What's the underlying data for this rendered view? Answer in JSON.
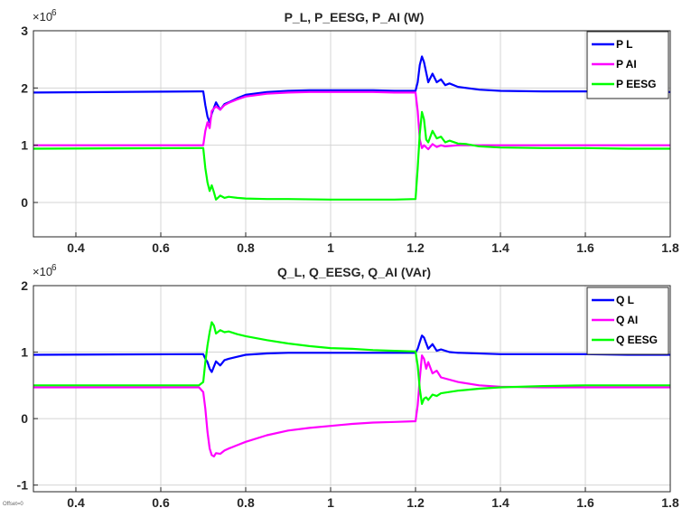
{
  "offset_label": "Offset=0",
  "chart_data": [
    {
      "type": "line",
      "title": "P_L, P_EESG, P_AI (W)",
      "xlabel": "",
      "ylabel": "",
      "exponent_base": "×10",
      "exponent_power": "6",
      "xlim": [
        0.3,
        1.8
      ],
      "ylim": [
        -0.6,
        3.0
      ],
      "xticks": [
        0.4,
        0.6,
        0.8,
        1.0,
        1.2,
        1.4,
        1.6,
        1.8
      ],
      "xtick_labels": [
        "0.4",
        "0.6",
        "0.8",
        "1",
        "1.2",
        "1.4",
        "1.6",
        "1.8"
      ],
      "yticks": [
        0,
        1,
        2,
        3
      ],
      "ytick_labels": [
        "0",
        "1",
        "2",
        "3"
      ],
      "grid": true,
      "legend": "top-right",
      "series": [
        {
          "name": "P L",
          "color": "#0000ff",
          "x": [
            0.3,
            0.69,
            0.7,
            0.705,
            0.71,
            0.715,
            0.72,
            0.73,
            0.74,
            0.75,
            0.76,
            0.78,
            0.8,
            0.85,
            0.9,
            0.95,
            1.0,
            1.05,
            1.1,
            1.15,
            1.2,
            1.205,
            1.21,
            1.215,
            1.22,
            1.23,
            1.24,
            1.25,
            1.26,
            1.27,
            1.28,
            1.3,
            1.35,
            1.4,
            1.5,
            1.6,
            1.7,
            1.8
          ],
          "y": [
            1.92,
            1.94,
            1.94,
            1.7,
            1.5,
            1.4,
            1.55,
            1.75,
            1.62,
            1.72,
            1.75,
            1.82,
            1.88,
            1.93,
            1.95,
            1.96,
            1.96,
            1.96,
            1.96,
            1.95,
            1.95,
            2.1,
            2.4,
            2.55,
            2.45,
            2.1,
            2.25,
            2.1,
            2.15,
            2.05,
            2.08,
            2.02,
            1.97,
            1.95,
            1.94,
            1.94,
            1.93,
            1.93
          ]
        },
        {
          "name": "P AI",
          "color": "#ff00ff",
          "x": [
            0.3,
            0.69,
            0.7,
            0.705,
            0.71,
            0.715,
            0.72,
            0.73,
            0.74,
            0.75,
            0.76,
            0.78,
            0.8,
            0.85,
            0.9,
            0.95,
            1.0,
            1.05,
            1.1,
            1.15,
            1.2,
            1.205,
            1.21,
            1.215,
            1.22,
            1.23,
            1.24,
            1.25,
            1.26,
            1.27,
            1.3,
            1.4,
            1.5,
            1.6,
            1.7,
            1.8
          ],
          "y": [
            1.0,
            1.0,
            1.0,
            1.25,
            1.4,
            1.3,
            1.6,
            1.68,
            1.62,
            1.7,
            1.74,
            1.8,
            1.85,
            1.9,
            1.92,
            1.93,
            1.93,
            1.93,
            1.93,
            1.92,
            1.92,
            1.6,
            1.1,
            0.95,
            1.0,
            0.93,
            1.02,
            0.97,
            1.0,
            0.98,
            1.0,
            1.0,
            1.0,
            1.0,
            1.0,
            1.0
          ]
        },
        {
          "name": "P EESG",
          "color": "#00ff00",
          "x": [
            0.3,
            0.69,
            0.7,
            0.705,
            0.71,
            0.715,
            0.72,
            0.725,
            0.73,
            0.74,
            0.75,
            0.76,
            0.78,
            0.8,
            0.85,
            0.9,
            1.0,
            1.1,
            1.15,
            1.2,
            1.205,
            1.21,
            1.215,
            1.22,
            1.225,
            1.23,
            1.24,
            1.25,
            1.26,
            1.27,
            1.28,
            1.3,
            1.32,
            1.35,
            1.4,
            1.5,
            1.6,
            1.7,
            1.8
          ],
          "y": [
            0.94,
            0.95,
            0.95,
            0.6,
            0.35,
            0.2,
            0.3,
            0.18,
            0.05,
            0.12,
            0.08,
            0.1,
            0.08,
            0.07,
            0.06,
            0.06,
            0.05,
            0.05,
            0.05,
            0.06,
            0.6,
            1.2,
            1.58,
            1.45,
            1.1,
            1.05,
            1.25,
            1.12,
            1.15,
            1.05,
            1.08,
            1.03,
            1.02,
            0.98,
            0.96,
            0.95,
            0.95,
            0.94,
            0.94
          ]
        }
      ]
    },
    {
      "type": "line",
      "title": "Q_L, Q_EESG, Q_AI (VAr)",
      "xlabel": "",
      "ylabel": "",
      "exponent_base": "×10",
      "exponent_power": "6",
      "xlim": [
        0.3,
        1.8
      ],
      "ylim": [
        -1.1,
        2.0
      ],
      "xticks": [
        0.4,
        0.6,
        0.8,
        1.0,
        1.2,
        1.4,
        1.6,
        1.8
      ],
      "xtick_labels": [
        "0.4",
        "0.6",
        "0.8",
        "1",
        "1.2",
        "1.4",
        "1.6",
        "1.8"
      ],
      "yticks": [
        -1,
        0,
        1,
        2
      ],
      "ytick_labels": [
        "-1",
        "0",
        "1",
        "2"
      ],
      "grid": true,
      "legend": "top-right",
      "series": [
        {
          "name": "Q L",
          "color": "#0000ff",
          "x": [
            0.3,
            0.69,
            0.7,
            0.705,
            0.71,
            0.715,
            0.72,
            0.73,
            0.74,
            0.75,
            0.76,
            0.78,
            0.8,
            0.85,
            0.9,
            1.0,
            1.1,
            1.2,
            1.205,
            1.21,
            1.215,
            1.22,
            1.23,
            1.24,
            1.25,
            1.26,
            1.28,
            1.3,
            1.4,
            1.5,
            1.6,
            1.7,
            1.8
          ],
          "y": [
            0.96,
            0.97,
            0.97,
            0.9,
            0.85,
            0.75,
            0.7,
            0.86,
            0.8,
            0.88,
            0.9,
            0.93,
            0.96,
            0.98,
            0.99,
            0.99,
            0.99,
            0.99,
            1.05,
            1.15,
            1.25,
            1.22,
            1.05,
            1.12,
            1.02,
            1.04,
            1.0,
            0.99,
            0.97,
            0.97,
            0.97,
            0.96,
            0.96
          ]
        },
        {
          "name": "Q AI",
          "color": "#ff00ff",
          "x": [
            0.3,
            0.69,
            0.7,
            0.705,
            0.71,
            0.715,
            0.72,
            0.725,
            0.73,
            0.74,
            0.75,
            0.76,
            0.78,
            0.8,
            0.85,
            0.9,
            0.95,
            1.0,
            1.05,
            1.1,
            1.15,
            1.2,
            1.205,
            1.21,
            1.215,
            1.22,
            1.225,
            1.23,
            1.24,
            1.25,
            1.26,
            1.3,
            1.35,
            1.4,
            1.5,
            1.6,
            1.7,
            1.8
          ],
          "y": [
            0.47,
            0.47,
            0.4,
            0.15,
            -0.2,
            -0.45,
            -0.55,
            -0.57,
            -0.52,
            -0.53,
            -0.48,
            -0.45,
            -0.4,
            -0.35,
            -0.25,
            -0.18,
            -0.14,
            -0.11,
            -0.08,
            -0.06,
            -0.05,
            -0.04,
            0.2,
            0.6,
            0.95,
            0.9,
            0.75,
            0.85,
            0.68,
            0.72,
            0.62,
            0.55,
            0.5,
            0.48,
            0.47,
            0.47,
            0.47,
            0.47
          ]
        },
        {
          "name": "Q EESG",
          "color": "#00ff00",
          "x": [
            0.3,
            0.69,
            0.7,
            0.705,
            0.71,
            0.715,
            0.72,
            0.725,
            0.73,
            0.74,
            0.75,
            0.76,
            0.78,
            0.8,
            0.85,
            0.9,
            0.95,
            1.0,
            1.05,
            1.1,
            1.15,
            1.2,
            1.205,
            1.21,
            1.215,
            1.22,
            1.225,
            1.23,
            1.24,
            1.25,
            1.26,
            1.3,
            1.35,
            1.4,
            1.5,
            1.6,
            1.7,
            1.8
          ],
          "y": [
            0.5,
            0.5,
            0.55,
            0.85,
            1.1,
            1.3,
            1.45,
            1.4,
            1.28,
            1.33,
            1.3,
            1.31,
            1.27,
            1.24,
            1.18,
            1.13,
            1.09,
            1.06,
            1.05,
            1.03,
            1.02,
            1.01,
            0.8,
            0.45,
            0.22,
            0.3,
            0.32,
            0.28,
            0.36,
            0.34,
            0.38,
            0.42,
            0.45,
            0.47,
            0.49,
            0.5,
            0.5,
            0.5
          ]
        }
      ]
    }
  ]
}
